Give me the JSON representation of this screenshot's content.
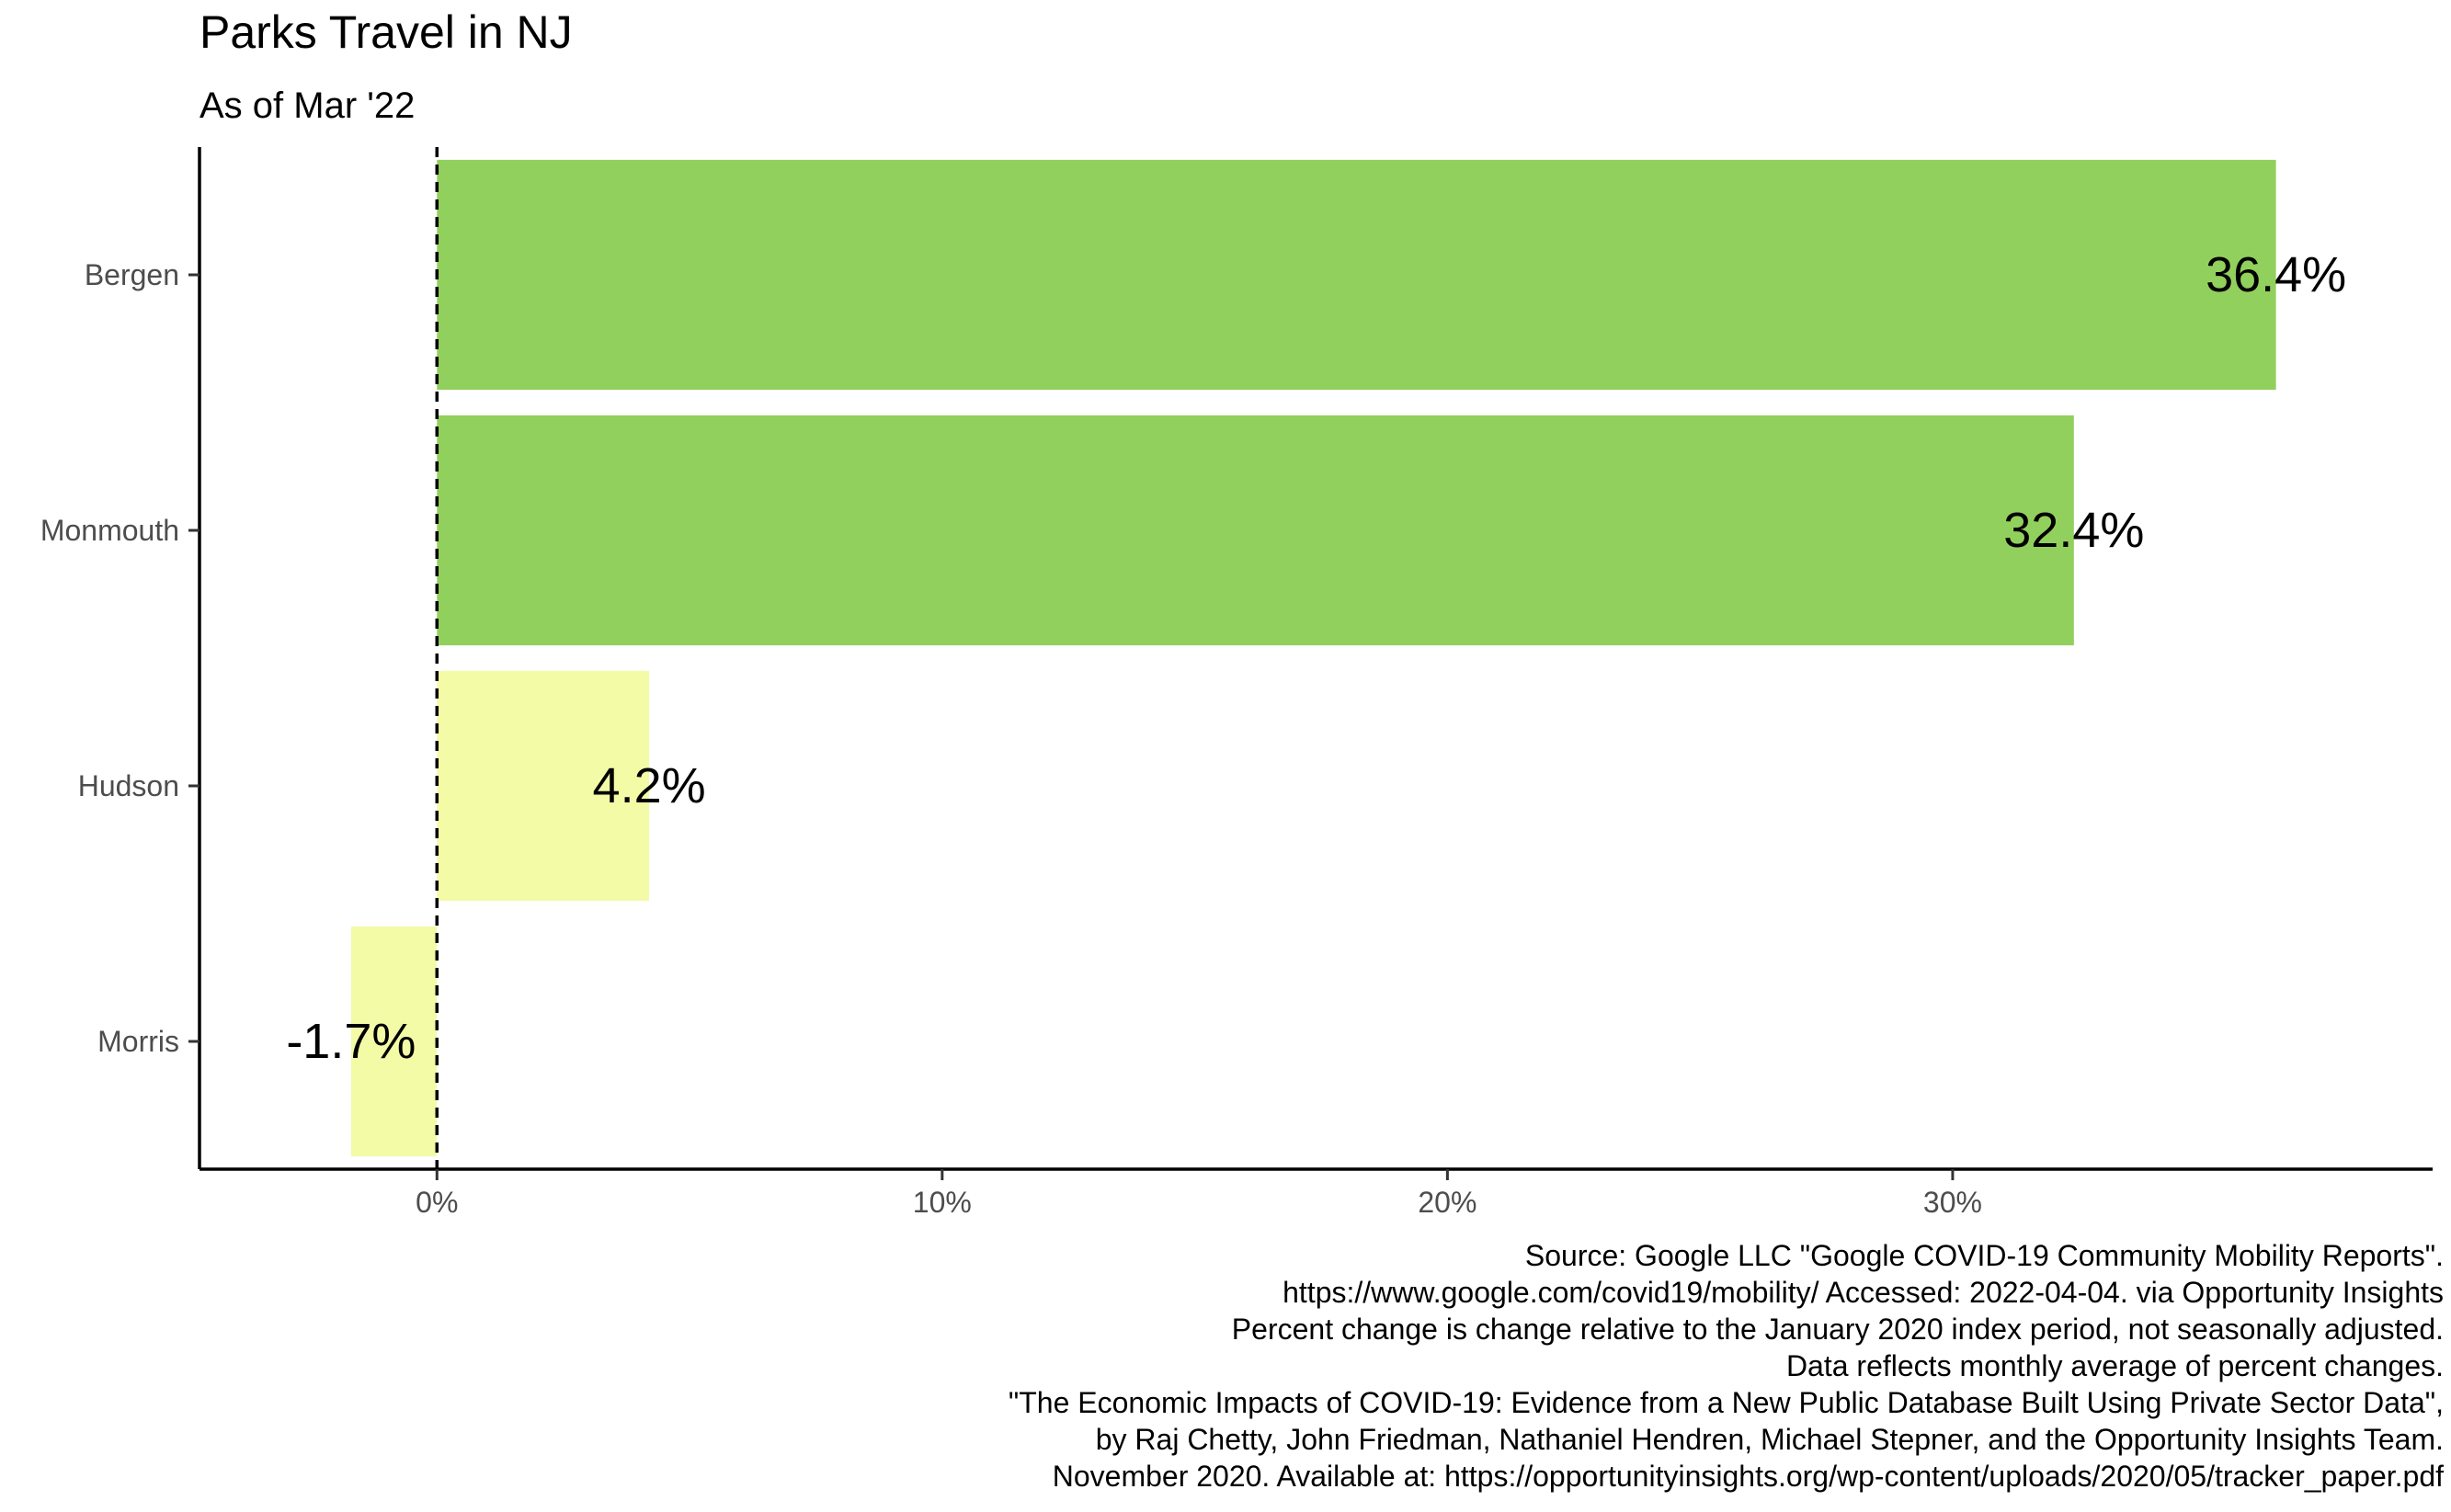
{
  "chart_data": {
    "type": "bar",
    "orientation": "horizontal",
    "title": "Parks Travel in NJ",
    "subtitle": "As of Mar '22",
    "categories": [
      "Bergen",
      "Monmouth",
      "Hudson",
      "Morris"
    ],
    "values": [
      36.4,
      32.4,
      4.2,
      -1.7
    ],
    "data_labels": [
      "36.4%",
      "32.4%",
      "4.2%",
      "-1.7%"
    ],
    "bar_colors": [
      "#92D05D",
      "#92D05D",
      "#F3FBA7",
      "#F3FBA7"
    ],
    "x_ticks": [
      0,
      10,
      20,
      30
    ],
    "x_tick_labels": [
      "0%",
      "10%",
      "20%",
      "30%"
    ],
    "xlim": [
      -4.7,
      39.5
    ],
    "reference_line": {
      "value": 0,
      "style": "dashed"
    },
    "grid": false,
    "xlabel": "",
    "ylabel": ""
  },
  "caption": [
    "Source: Google LLC \"Google COVID-19 Community Mobility Reports\".",
    "https://www.google.com/covid19/mobility/ Accessed: 2022-04-04. via Opportunity Insights",
    "Percent change is change relative to the January 2020 index period, not seasonally adjusted.",
    "Data reflects monthly average of percent changes.",
    "\"The Economic Impacts of COVID-19: Evidence from a New Public Database Built Using Private Sector Data\",",
    "by Raj Chetty, John Friedman, Nathaniel Hendren, Michael Stepner, and the Opportunity Insights Team.",
    "November 2020. Available at: https://opportunityinsights.org/wp-content/uploads/2020/05/tracker_paper.pdf"
  ]
}
